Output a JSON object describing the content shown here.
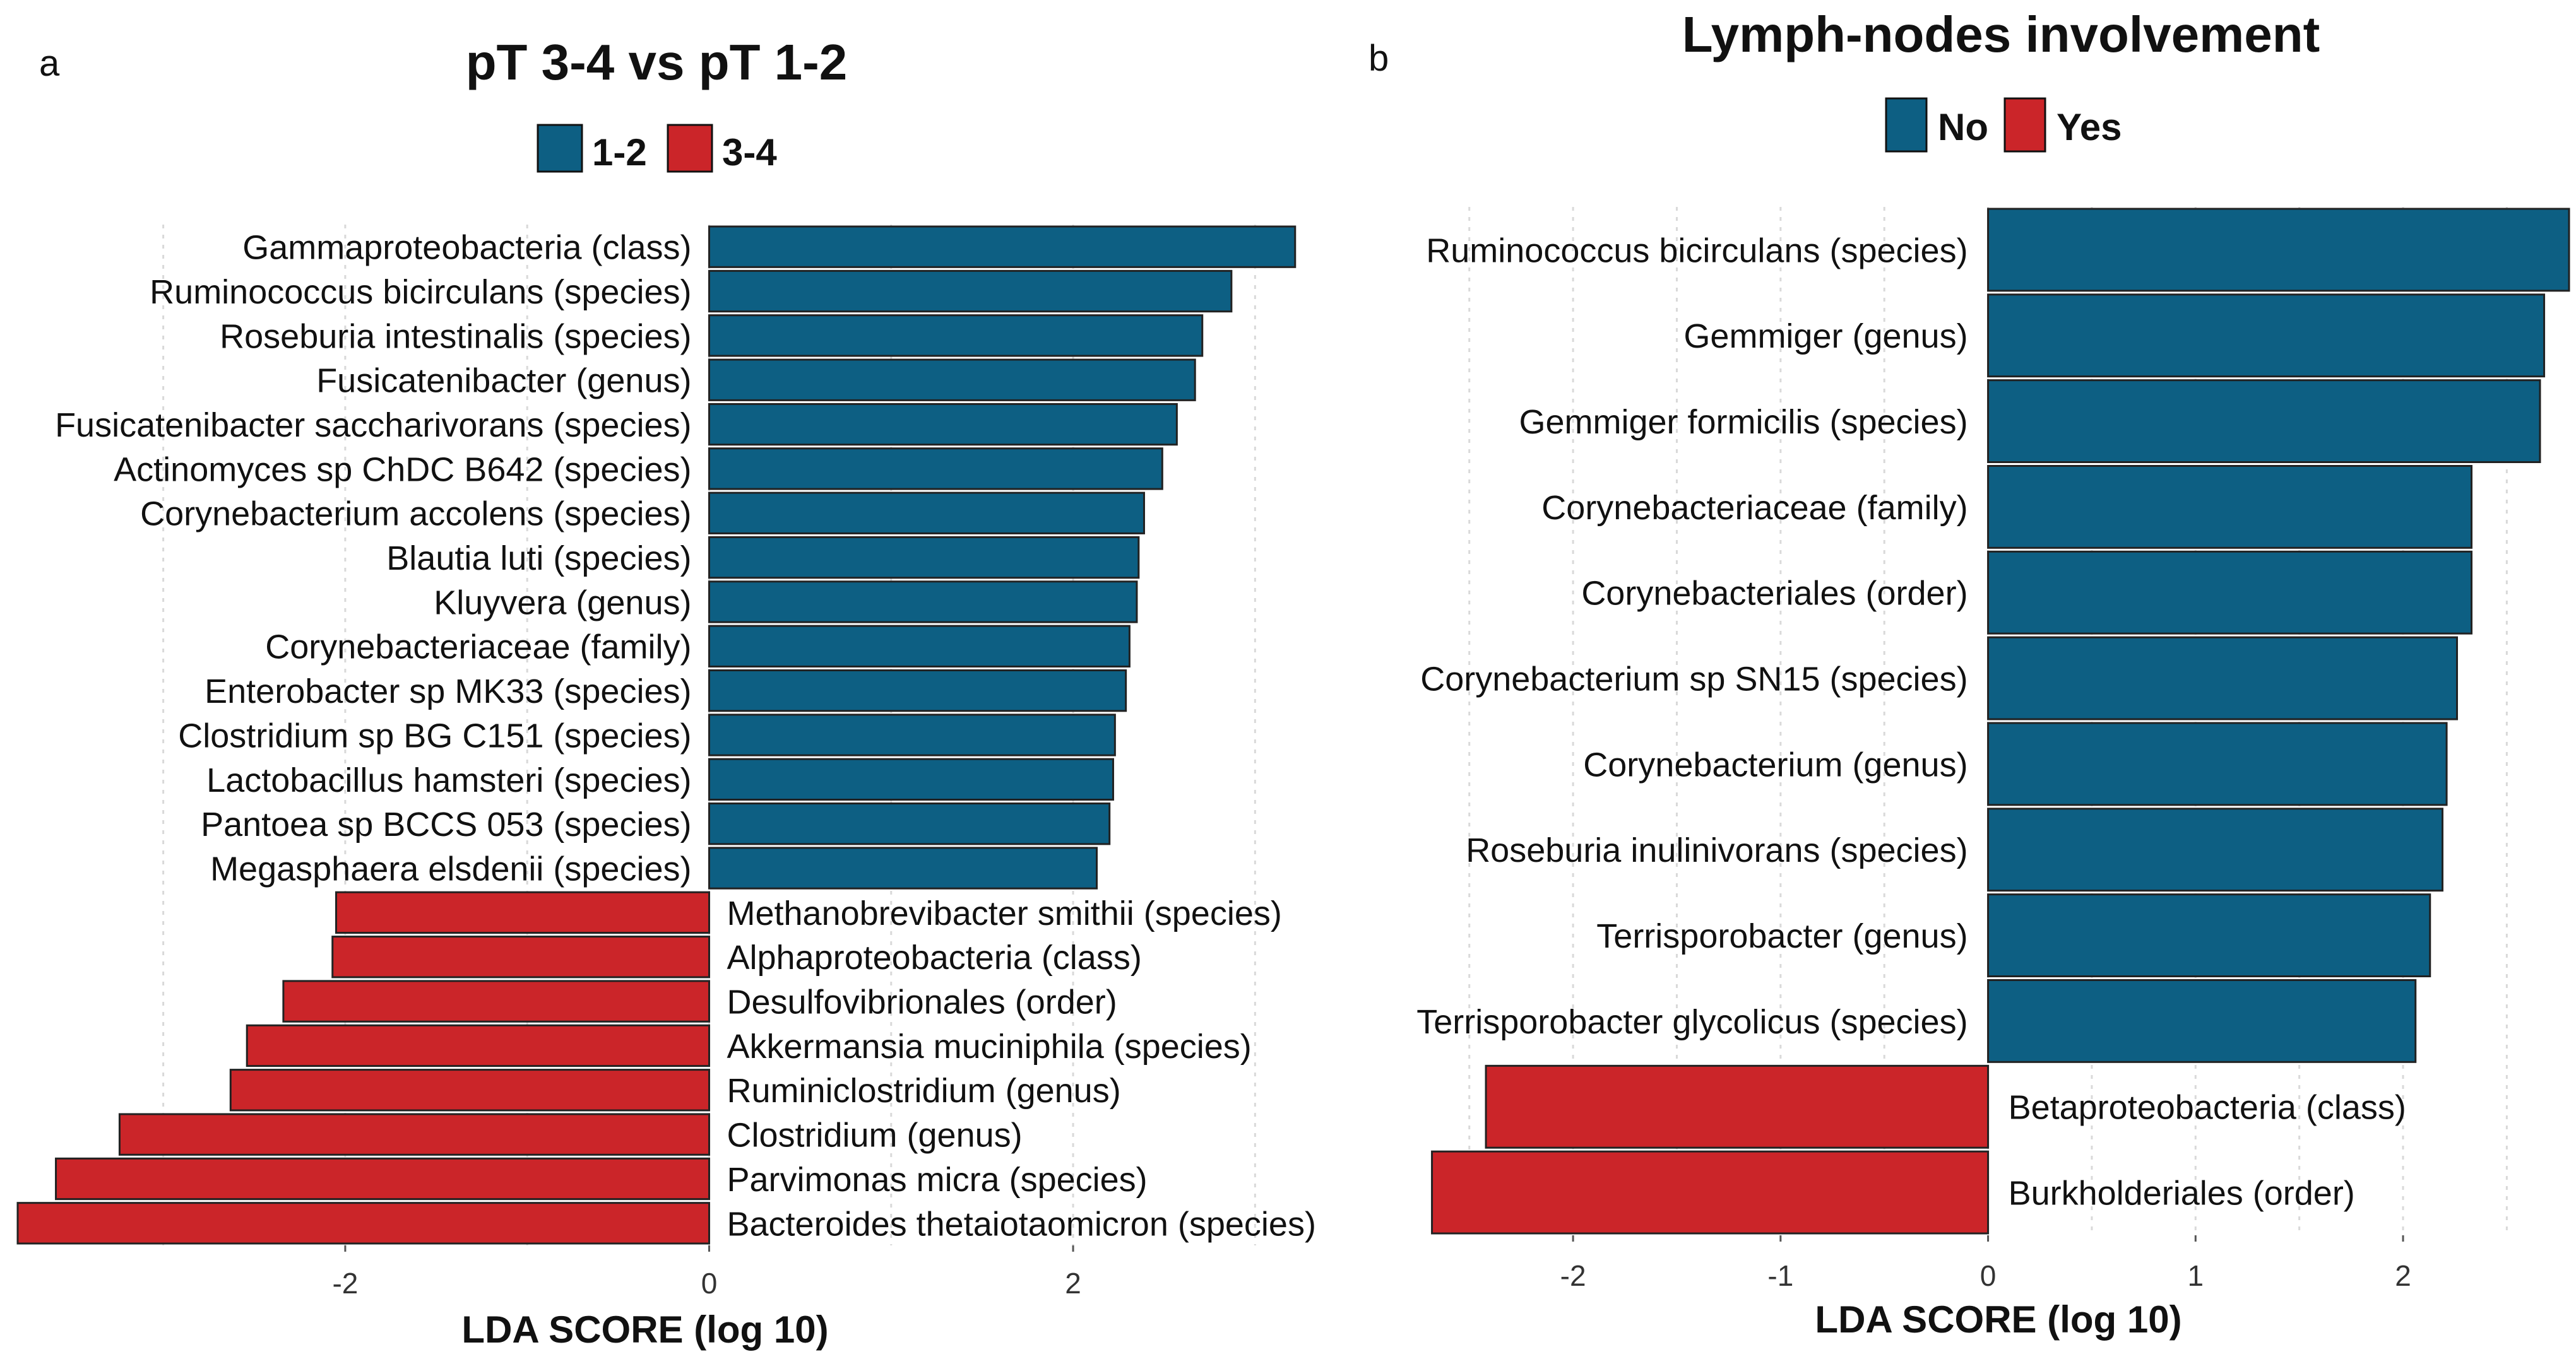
{
  "colors": {
    "positive": "#0D5F83",
    "negative": "#CB2529",
    "grid": "#D9D9D9",
    "text": "#111111"
  },
  "chart_data": [
    {
      "type": "bar",
      "orientation": "horizontal",
      "panel_label": "a",
      "title": "pT 3-4 vs pT 1-2",
      "xlabel": "LDA SCORE (log 10)",
      "ylabel": "",
      "xlim": [
        -3.8,
        3.2
      ],
      "xticks": [
        -2,
        0,
        2
      ],
      "tick_labels": [
        "-2",
        "0",
        "2"
      ],
      "legend": [
        {
          "label": "1-2",
          "color": "#0D5F83"
        },
        {
          "label": "3-4",
          "color": "#CB2529"
        }
      ],
      "categories": [
        "Gammaproteobacteria (class)",
        "Ruminococcus bicirculans (species)",
        "Roseburia intestinalis (species)",
        "Fusicatenibacter (genus)",
        "Fusicatenibacter saccharivorans (species)",
        "Actinomyces sp  ChDC B642 (species)",
        "Corynebacterium accolens (species)",
        "Blautia luti (species)",
        "Kluyvera (genus)",
        "Corynebacteriaceae (family)",
        "Enterobacter sp  MK33 (species)",
        "Clostridium sp  BG C151 (species)",
        "Lactobacillus hamsteri (species)",
        "Pantoea sp  BCCS 053 (species)",
        "Megasphaera elsdenii (species)",
        "Methanobrevibacter smithii (species)",
        "Alphaproteobacteria (class)",
        "Desulfovibrionales (order)",
        "Akkermansia muciniphila (species)",
        "Ruminiclostridium (genus)",
        "Clostridium (genus)",
        "Parvimonas micra (species)",
        "Bacteroides thetaiotaomicron (species)"
      ],
      "values": [
        3.22,
        2.87,
        2.71,
        2.67,
        2.57,
        2.49,
        2.39,
        2.36,
        2.35,
        2.31,
        2.29,
        2.23,
        2.22,
        2.2,
        2.13,
        -2.05,
        -2.07,
        -2.34,
        -2.54,
        -2.63,
        -3.24,
        -3.59,
        -3.8
      ]
    },
    {
      "type": "bar",
      "orientation": "horizontal",
      "panel_label": "b",
      "title": "Lymph-nodes involvement",
      "xlabel": "LDA SCORE (log 10)",
      "ylabel": "",
      "xlim": [
        -2.7,
        2.8
      ],
      "xticks": [
        -2,
        -1,
        0,
        1,
        2
      ],
      "tick_labels": [
        "-2",
        "-1",
        "0",
        "1",
        "2"
      ],
      "legend": [
        {
          "label": "No",
          "color": "#0D5F83"
        },
        {
          "label": "Yes",
          "color": "#CB2529"
        }
      ],
      "categories": [
        "Ruminococcus bicirculans (species)",
        "Gemmiger (genus)",
        "Gemmiger formicilis (species)",
        "Corynebacteriaceae (family)",
        "Corynebacteriales (order)",
        "Corynebacterium sp  SN15 (species)",
        "Corynebacterium (genus)",
        "Roseburia inulinivorans (species)",
        "Terrisporobacter (genus)",
        "Terrisporobacter glycolicus (species)",
        "Betaproteobacteria (class)",
        "Burkholderiales (order)"
      ],
      "values": [
        2.8,
        2.68,
        2.66,
        2.33,
        2.33,
        2.26,
        2.21,
        2.19,
        2.13,
        2.06,
        -2.42,
        -2.68
      ]
    }
  ]
}
